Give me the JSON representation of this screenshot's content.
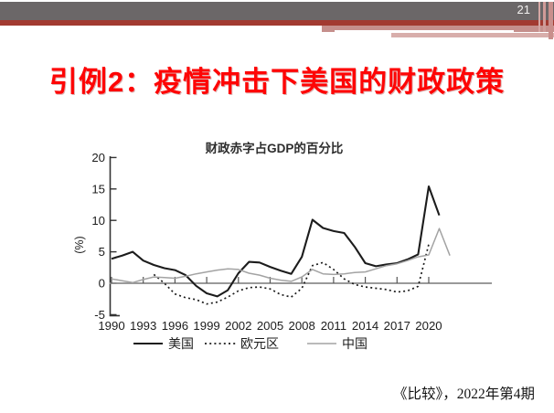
{
  "slide": {
    "page_number": "21",
    "title": "引例2：疫情冲击下美国的财政政策",
    "citation": "《比较》，2022年第4期",
    "colors": {
      "banner_gray": "#6b6768",
      "banner_dark_red": "#a23a31",
      "banner_pink": "#c58f8c",
      "banner_light_pink": "#d8aeab",
      "title_red": "#fe0505"
    }
  },
  "chart_data": {
    "type": "line",
    "title": "财政赤字占GDP的百分比",
    "ylabel": "(%)",
    "xlabel": "",
    "ylim": [
      -5,
      20
    ],
    "yticks": [
      20,
      15,
      10,
      5,
      0,
      -5
    ],
    "xticks": [
      1990,
      1993,
      1996,
      1999,
      2002,
      2005,
      2008,
      2011,
      2014,
      2017,
      2020
    ],
    "grid": false,
    "legend_position": "bottom",
    "zero_baseline": true,
    "series": [
      {
        "name": "美国",
        "style": {
          "color": "#1c1c1c",
          "width": 2.1,
          "dash": ""
        },
        "start_year": 1990,
        "values": [
          3.9,
          4.4,
          5.0,
          3.6,
          2.9,
          2.4,
          2.1,
          1.3,
          -0.4,
          -1.6,
          -2.1,
          -1.1,
          1.6,
          3.4,
          3.3,
          2.6,
          2.0,
          1.5,
          4.2,
          10.1,
          8.8,
          8.3,
          8.0,
          5.8,
          3.2,
          2.7,
          3.0,
          3.2,
          3.8,
          4.6,
          15.4,
          10.8
        ]
      },
      {
        "name": "欧元区",
        "style": {
          "color": "#1c1c1c",
          "width": 1.7,
          "dash": "2 3.2"
        },
        "start_year": 1994,
        "values": [
          1.4,
          0.0,
          -1.7,
          -2.3,
          -2.6,
          -3.3,
          -3.0,
          -2.2,
          -1.2,
          -0.7,
          -0.6,
          -0.9,
          -1.8,
          -2.2,
          -0.8,
          2.8,
          3.3,
          2.2,
          0.7,
          -0.2,
          -0.6,
          -0.8,
          -1.0,
          -1.4,
          -1.2,
          -0.5,
          6.2
        ]
      },
      {
        "name": "中国",
        "style": {
          "color": "#a3a3a3",
          "width": 1.5,
          "dash": ""
        },
        "start_year": 1990,
        "values": [
          0.7,
          0.4,
          0.1,
          0.6,
          1.0,
          0.9,
          0.8,
          1.1,
          1.5,
          1.8,
          2.1,
          2.3,
          2.2,
          1.6,
          1.3,
          0.8,
          0.5,
          0.3,
          1.0,
          2.2,
          1.5,
          1.4,
          1.5,
          1.7,
          1.8,
          2.3,
          2.8,
          3.1,
          3.6,
          4.2,
          4.5,
          8.7,
          4.4
        ]
      }
    ]
  }
}
